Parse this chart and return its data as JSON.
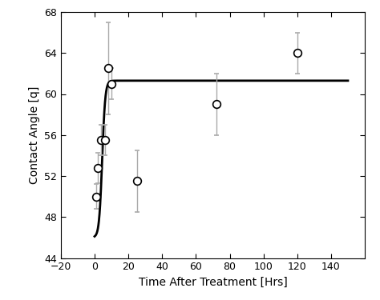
{
  "x_data": [
    1,
    2,
    4,
    6,
    8,
    10,
    25,
    72,
    120
  ],
  "y_data": [
    50.0,
    52.8,
    55.5,
    55.5,
    62.5,
    61.0,
    51.5,
    59.0,
    64.0
  ],
  "y_err": [
    1.2,
    1.5,
    1.5,
    1.5,
    4.5,
    1.5,
    3.0,
    3.0,
    2.0
  ],
  "xlabel": "Time After Treatment [Hrs]",
  "ylabel": "Contact Angle [q]",
  "xlim": [
    -20,
    160
  ],
  "ylim": [
    44,
    68
  ],
  "xticks": [
    -20,
    0,
    20,
    40,
    60,
    80,
    100,
    120,
    140
  ],
  "yticks": [
    44,
    48,
    52,
    56,
    60,
    64,
    68
  ],
  "curve_color": "#000000",
  "marker_color": "white",
  "marker_edge_color": "#000000",
  "error_bar_color": "#aaaaaa",
  "bg_color": "#ffffff",
  "curve_plateau": 61.3,
  "curve_min": 46.0,
  "curve_k": 1.1,
  "curve_x0": 4.5,
  "curve_xstart": 0.0,
  "curve_xend": 150.0
}
